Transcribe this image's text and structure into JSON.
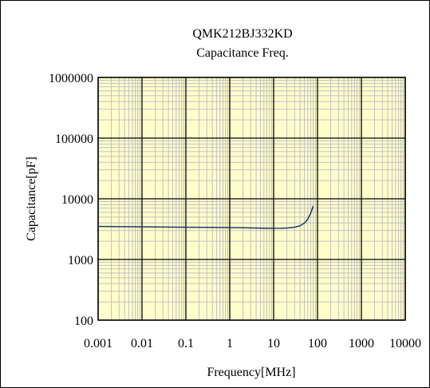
{
  "chart_data": {
    "type": "line",
    "title": "QMK212BJ332KD",
    "subtitle": "Capacitance Freq.",
    "xlabel": "Frequency[MHz]",
    "ylabel": "Capacitance[pF]",
    "x_scale": "log",
    "y_scale": "log",
    "xlim": [
      0.001,
      10000
    ],
    "ylim": [
      100,
      1000000
    ],
    "grid": true,
    "x_ticks": [
      {
        "value": 0.001,
        "label": "0.001"
      },
      {
        "value": 0.01,
        "label": "0.01"
      },
      {
        "value": 0.1,
        "label": "0.1"
      },
      {
        "value": 1,
        "label": "1"
      },
      {
        "value": 10,
        "label": "10"
      },
      {
        "value": 100,
        "label": "100"
      },
      {
        "value": 1000,
        "label": "1000"
      },
      {
        "value": 10000,
        "label": "10000"
      }
    ],
    "y_ticks": [
      {
        "value": 100,
        "label": "100"
      },
      {
        "value": 1000,
        "label": "1000"
      },
      {
        "value": 10000,
        "label": "10000"
      },
      {
        "value": 100000,
        "label": "100000"
      },
      {
        "value": 1000000,
        "label": "1000000"
      }
    ],
    "series": [
      {
        "color": "#1f3864",
        "x": [
          0.001,
          0.003,
          0.01,
          0.03,
          0.1,
          0.3,
          1,
          2,
          3,
          5,
          7,
          10,
          15,
          20,
          30,
          40,
          50,
          60,
          70,
          80
        ],
        "y": [
          3500,
          3480,
          3450,
          3420,
          3400,
          3380,
          3350,
          3330,
          3310,
          3290,
          3270,
          3260,
          3270,
          3300,
          3400,
          3600,
          3950,
          4600,
          5800,
          7600
        ]
      }
    ]
  },
  "colors": {
    "plot_background": "#ffffcc",
    "minor_grid": "#c0c0c0",
    "major_grid": "#000000",
    "line": "#1f3864"
  }
}
